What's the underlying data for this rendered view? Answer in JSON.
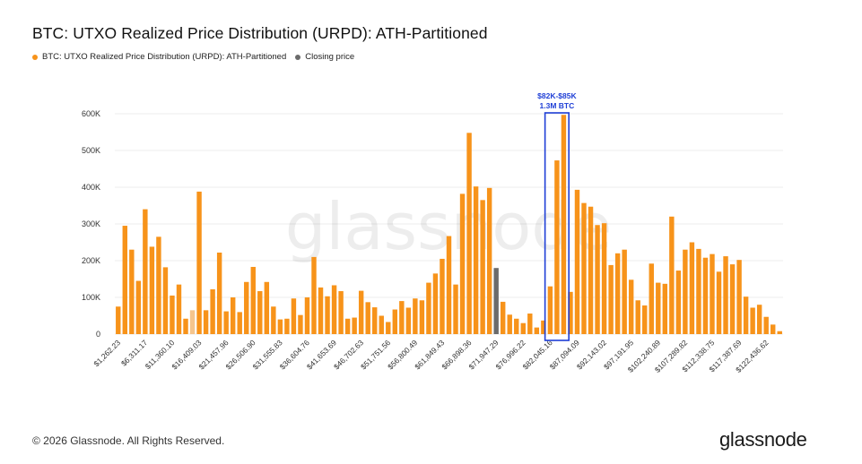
{
  "title": "BTC: UTXO Realized Price Distribution (URPD): ATH-Partitioned",
  "legend": [
    {
      "label": "BTC: UTXO Realized Price Distribution (URPD): ATH-Partitioned",
      "color": "#f7931a"
    },
    {
      "label": "Closing price",
      "color": "#6b6b6b"
    }
  ],
  "footer": "© 2026 Glassnode. All Rights Reserved.",
  "logo": "glassnode",
  "watermark": "glassnode",
  "annotation": {
    "line1": "$82K-$85K",
    "line2": "1.3M BTC",
    "color": "#1f3fd6",
    "from_index": 58,
    "to_index": 60
  },
  "colors": {
    "orange": "#f7931a",
    "light_orange": "#f5c58d",
    "closing": "#6b6b6b",
    "grid": "#ececec",
    "axis_text": "#333333"
  },
  "chart_data": {
    "type": "bar",
    "title": "BTC: UTXO Realized Price Distribution (URPD): ATH-Partitioned",
    "xlabel": "",
    "ylabel": "",
    "ylim": [
      0,
      600000
    ],
    "grid": true,
    "legend_position": "top-left",
    "y_ticks": [
      0,
      100000,
      200000,
      300000,
      400000,
      500000,
      600000
    ],
    "y_tick_labels": [
      "0",
      "100K",
      "200K",
      "300K",
      "400K",
      "500K",
      "600K"
    ],
    "x_tick_labels": [
      "$1,262.23",
      "$6,311.17",
      "$11,360.10",
      "$16,409.03",
      "$21,457.96",
      "$26,506.90",
      "$31,555.83",
      "$36,604.76",
      "$41,653.69",
      "$46,702.63",
      "$51,751.56",
      "$56,800.49",
      "$61,849.43",
      "$66,898.36",
      "$71,947.29",
      "$76,996.22",
      "$82,045.16",
      "$87,094.09",
      "$92,143.02",
      "$97,191.95",
      "$102,240.89",
      "$107,289.82",
      "$112,338.75",
      "$117,387.69",
      "$122,436.62"
    ],
    "series": [
      {
        "name": "BTC: UTXO Realized Price Distribution (URPD): ATH-Partitioned",
        "values": [
          75000,
          295000,
          230000,
          145000,
          340000,
          238000,
          265000,
          182000,
          105000,
          135000,
          42000,
          65000,
          388000,
          65000,
          122000,
          222000,
          62000,
          100000,
          60000,
          142000,
          183000,
          117000,
          142000,
          75000,
          40000,
          42000,
          97000,
          52000,
          100000,
          210000,
          127000,
          103000,
          133000,
          117000,
          42000,
          45000,
          118000,
          87000,
          73000,
          50000,
          33000,
          67000,
          90000,
          72000,
          97000,
          92000,
          140000,
          165000,
          205000,
          267000,
          135000,
          382000,
          548000,
          402000,
          365000,
          398000,
          180000,
          88000,
          53000,
          42000,
          30000,
          56000,
          18000,
          37000,
          130000,
          473000,
          597000,
          115000,
          393000,
          357000,
          347000,
          297000,
          302000,
          188000,
          220000,
          230000,
          148000,
          92000,
          78000,
          192000,
          140000,
          137000,
          320000,
          173000,
          230000,
          250000,
          232000,
          208000,
          218000,
          170000,
          212000,
          190000,
          202000,
          102000,
          72000,
          80000,
          47000,
          26000,
          8000
        ],
        "color": "#f7931a"
      }
    ],
    "highlighted": {
      "light_indices": [
        11
      ],
      "closing_price_index": 56
    }
  }
}
